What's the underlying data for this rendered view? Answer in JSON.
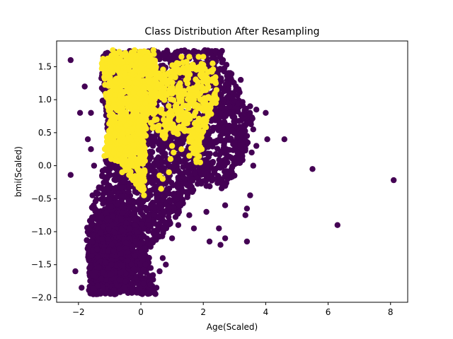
{
  "chart_data": {
    "type": "scatter",
    "title": "Class Distribution After Resampling",
    "xlabel": "Age(Scaled)",
    "ylabel": "bmi(Scaled)",
    "xlim": [
      -2.7,
      8.55
    ],
    "ylim": [
      -2.07,
      1.89
    ],
    "xticks": [
      -2,
      0,
      2,
      4,
      6,
      8
    ],
    "xtick_labels": [
      "−2",
      "0",
      "2",
      "4",
      "6",
      "8"
    ],
    "yticks": [
      -2.0,
      -1.5,
      -1.0,
      -0.5,
      0.0,
      0.5,
      1.0,
      1.5
    ],
    "ytick_labels": [
      "−2.0",
      "−1.5",
      "−1.0",
      "−0.5",
      "0.0",
      "0.5",
      "1.0",
      "1.5"
    ],
    "grid": false,
    "series": [
      {
        "color": "#440154",
        "clusters": [
          {
            "poly": [
              [
                -1.5,
                -1.95
              ],
              [
                -0.4,
                -1.95
              ],
              [
                -0.1,
                -1.6
              ],
              [
                0.8,
                -1.0
              ],
              [
                1.8,
                -0.3
              ],
              [
                2.7,
                -0.35
              ],
              [
                3.3,
                0.1
              ],
              [
                3.6,
                0.7
              ],
              [
                3.0,
                1.3
              ],
              [
                2.6,
                1.75
              ],
              [
                -1.2,
                1.75
              ],
              [
                -1.3,
                1.2
              ],
              [
                -1.0,
                0.3
              ],
              [
                -1.8,
                -1.0
              ]
            ],
            "count": 2600,
            "seed": 11
          },
          {
            "poly": [
              [
                -1.7,
                -1.95
              ],
              [
                0.5,
                -1.95
              ],
              [
                0.3,
                -1.4
              ],
              [
                -0.3,
                -0.7
              ],
              [
                -1.0,
                -0.5
              ],
              [
                -1.7,
                -1.2
              ]
            ],
            "count": 700,
            "seed": 23
          }
        ],
        "points": [
          [
            -2.25,
            1.6
          ],
          [
            -1.8,
            1.2
          ],
          [
            -1.95,
            0.8
          ],
          [
            -1.6,
            0.8
          ],
          [
            -1.7,
            0.4
          ],
          [
            -1.6,
            0.25
          ],
          [
            -2.25,
            -0.14
          ],
          [
            -1.55,
            -0.45
          ],
          [
            -1.5,
            0.0
          ],
          [
            -1.35,
            -0.7
          ],
          [
            -1.1,
            -0.35
          ],
          [
            -1.65,
            -1.55
          ],
          [
            -2.1,
            -1.6
          ],
          [
            -1.9,
            -1.85
          ],
          [
            0.3,
            -1.8
          ],
          [
            0.5,
            -1.85
          ],
          [
            0.6,
            -1.6
          ],
          [
            0.8,
            -1.5
          ],
          [
            1.0,
            -1.1
          ],
          [
            1.2,
            -0.9
          ],
          [
            1.55,
            -0.75
          ],
          [
            1.7,
            -0.95
          ],
          [
            2.1,
            -0.7
          ],
          [
            2.5,
            -0.95
          ],
          [
            2.7,
            -1.1
          ],
          [
            3.4,
            -0.65
          ],
          [
            3.5,
            -0.45
          ],
          [
            3.35,
            -0.75
          ],
          [
            2.65,
            -0.3
          ],
          [
            3.0,
            -0.15
          ],
          [
            3.4,
            0.45
          ],
          [
            3.6,
            0.0
          ],
          [
            3.55,
            0.2
          ],
          [
            3.7,
            0.3
          ],
          [
            3.3,
            0.6
          ],
          [
            3.6,
            0.55
          ],
          [
            4.0,
            0.8
          ],
          [
            4.05,
            0.4
          ],
          [
            4.6,
            0.4
          ],
          [
            2.4,
            0.35
          ],
          [
            2.6,
            0.5
          ],
          [
            2.7,
            0.25
          ],
          [
            3.05,
            1.15
          ],
          [
            3.2,
            1.3
          ],
          [
            3.5,
            0.9
          ],
          [
            3.7,
            0.85
          ],
          [
            2.8,
            1.05
          ],
          [
            2.3,
            0.85
          ],
          [
            2.05,
            1.75
          ],
          [
            2.35,
            1.05
          ],
          [
            3.4,
            -1.15
          ],
          [
            2.55,
            -1.2
          ],
          [
            2.2,
            -1.15
          ],
          [
            2.7,
            -0.6
          ],
          [
            5.5,
            -0.05
          ],
          [
            6.3,
            -0.9
          ],
          [
            8.1,
            -0.22
          ],
          [
            0.7,
            -1.4
          ],
          [
            0.15,
            -1.5
          ]
        ]
      },
      {
        "color": "#fde725",
        "clusters": [
          {
            "poly": [
              [
                -1.3,
                1.62
              ],
              [
                -0.6,
                1.75
              ],
              [
                0.3,
                1.75
              ],
              [
                0.5,
                1.65
              ],
              [
                0.5,
                1.1
              ],
              [
                0.2,
                0.7
              ],
              [
                0.15,
                0.2
              ],
              [
                0.1,
                -0.45
              ],
              [
                -0.2,
                -0.25
              ],
              [
                -0.7,
                0.05
              ],
              [
                -1.2,
                0.15
              ],
              [
                -1.0,
                0.7
              ],
              [
                -1.2,
                1.3
              ]
            ],
            "count": 900,
            "seed": 37
          },
          {
            "poly": [
              [
                0.2,
                1.4
              ],
              [
                1.4,
                1.6
              ],
              [
                2.4,
                1.5
              ],
              [
                2.45,
                1.0
              ],
              [
                2.1,
                0.6
              ],
              [
                1.8,
                0.0
              ],
              [
                1.45,
                0.5
              ],
              [
                0.7,
                0.4
              ],
              [
                0.3,
                0.6
              ]
            ],
            "count": 420,
            "seed": 53
          }
        ],
        "points": [
          [
            2.0,
            1.5
          ],
          [
            2.1,
            1.3
          ],
          [
            2.3,
            1.55
          ],
          [
            2.4,
            1.25
          ],
          [
            2.4,
            0.95
          ],
          [
            2.15,
            0.75
          ],
          [
            1.9,
            0.05
          ],
          [
            1.95,
            0.25
          ],
          [
            1.85,
            0.55
          ],
          [
            1.65,
            0.35
          ],
          [
            1.3,
            0.25
          ],
          [
            1.05,
            0.2
          ],
          [
            0.95,
            0.1
          ],
          [
            0.9,
            -0.1
          ],
          [
            0.7,
            -0.2
          ],
          [
            0.6,
            -0.15
          ],
          [
            0.65,
            -0.35
          ],
          [
            0.1,
            -0.45
          ],
          [
            0.0,
            -0.32
          ],
          [
            -0.15,
            0.2
          ],
          [
            -0.35,
            0.15
          ],
          [
            -0.6,
            -0.1
          ],
          [
            -0.95,
            0.1
          ],
          [
            -1.1,
            0.25
          ],
          [
            -1.0,
            0.45
          ],
          [
            -0.65,
            0.25
          ],
          [
            -1.25,
            1.55
          ],
          [
            -0.9,
            1.75
          ],
          [
            -0.2,
            1.75
          ],
          [
            0.4,
            1.75
          ],
          [
            1.3,
            1.65
          ],
          [
            1.55,
            1.65
          ],
          [
            1.85,
            1.65
          ],
          [
            2.0,
            1.65
          ],
          [
            2.3,
            1.0
          ],
          [
            2.0,
            0.95
          ],
          [
            1.7,
            1.0
          ],
          [
            1.4,
            0.55
          ],
          [
            1.0,
            0.3
          ],
          [
            1.55,
            0.15
          ]
        ]
      }
    ]
  }
}
